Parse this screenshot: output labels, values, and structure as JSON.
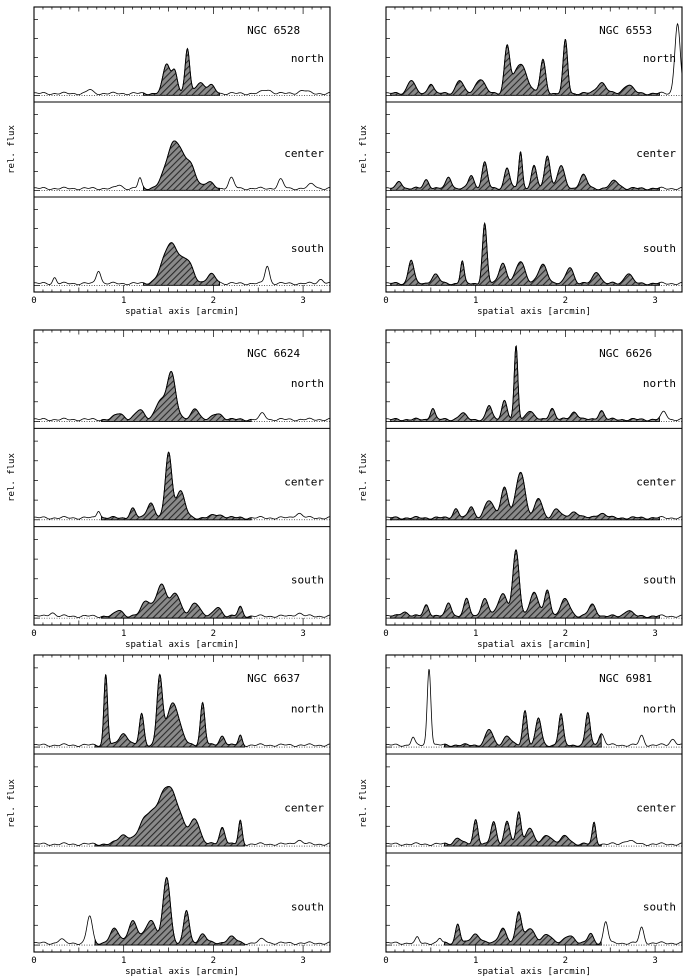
{
  "axis_common": {
    "xlabel": "spatial axis [arcmin]",
    "ylabel": "rel. flux",
    "xticks": [
      0,
      1,
      2,
      3
    ],
    "xlim": [
      0,
      3.3
    ]
  },
  "chart_data": [
    {
      "type": "area",
      "title": "NGC 6528",
      "xlim": [
        0,
        3.3
      ],
      "strips": [
        {
          "label": "north",
          "shade": [
            1.22,
            2.07
          ],
          "peaks": [
            [
              1.48,
              0.4,
              0.04
            ],
            [
              1.57,
              0.3,
              0.03
            ],
            [
              1.71,
              0.6,
              0.025
            ],
            [
              1.85,
              0.15,
              0.05
            ],
            [
              1.98,
              0.1,
              0.04
            ],
            [
              0.62,
              0.05,
              0.03
            ],
            [
              2.6,
              0.05,
              0.05
            ],
            [
              3.0,
              0.04,
              0.05
            ]
          ]
        },
        {
          "label": "center",
          "shade": [
            1.22,
            2.07
          ],
          "peaks": [
            [
              1.57,
              0.65,
              0.09
            ],
            [
              1.75,
              0.25,
              0.06
            ],
            [
              1.95,
              0.08,
              0.05
            ],
            [
              1.18,
              0.14,
              0.02
            ],
            [
              0.95,
              0.05,
              0.03
            ],
            [
              2.2,
              0.14,
              0.03
            ],
            [
              2.75,
              0.12,
              0.03
            ],
            [
              3.1,
              0.06,
              0.04
            ]
          ]
        },
        {
          "label": "south",
          "shade": [
            1.22,
            2.07
          ],
          "peaks": [
            [
              1.53,
              0.55,
              0.09
            ],
            [
              1.72,
              0.25,
              0.06
            ],
            [
              1.98,
              0.12,
              0.05
            ],
            [
              0.72,
              0.18,
              0.025
            ],
            [
              0.23,
              0.08,
              0.02
            ],
            [
              2.6,
              0.24,
              0.025
            ],
            [
              3.2,
              0.06,
              0.03
            ]
          ]
        }
      ]
    },
    {
      "type": "area",
      "title": "NGC 6553",
      "xlim": [
        0,
        3.3
      ],
      "strips": [
        {
          "label": "north",
          "shade": [
            0.05,
            3.05
          ],
          "peaks": [
            [
              0.28,
              0.18,
              0.04
            ],
            [
              0.5,
              0.14,
              0.03
            ],
            [
              0.82,
              0.18,
              0.04
            ],
            [
              1.05,
              0.2,
              0.05
            ],
            [
              1.35,
              0.62,
              0.03
            ],
            [
              1.5,
              0.4,
              0.07
            ],
            [
              1.75,
              0.45,
              0.03
            ],
            [
              2.0,
              0.72,
              0.025
            ],
            [
              2.4,
              0.15,
              0.05
            ],
            [
              2.7,
              0.12,
              0.05
            ],
            [
              3.25,
              0.95,
              0.03
            ]
          ]
        },
        {
          "label": "center",
          "shade": [
            0.05,
            3.05
          ],
          "peaks": [
            [
              0.15,
              0.1,
              0.03
            ],
            [
              0.45,
              0.12,
              0.03
            ],
            [
              0.7,
              0.16,
              0.03
            ],
            [
              0.95,
              0.18,
              0.03
            ],
            [
              1.1,
              0.35,
              0.03
            ],
            [
              1.35,
              0.28,
              0.03
            ],
            [
              1.5,
              0.5,
              0.02
            ],
            [
              1.65,
              0.3,
              0.03
            ],
            [
              1.8,
              0.45,
              0.03
            ],
            [
              1.95,
              0.3,
              0.04
            ],
            [
              2.2,
              0.18,
              0.04
            ],
            [
              2.55,
              0.1,
              0.05
            ]
          ]
        },
        {
          "label": "south",
          "shade": [
            0.05,
            3.05
          ],
          "peaks": [
            [
              0.28,
              0.32,
              0.03
            ],
            [
              0.55,
              0.12,
              0.04
            ],
            [
              0.85,
              0.3,
              0.02
            ],
            [
              1.1,
              0.8,
              0.025
            ],
            [
              1.3,
              0.28,
              0.04
            ],
            [
              1.5,
              0.3,
              0.05
            ],
            [
              1.75,
              0.25,
              0.05
            ],
            [
              2.05,
              0.22,
              0.04
            ],
            [
              2.35,
              0.16,
              0.04
            ],
            [
              2.7,
              0.14,
              0.04
            ]
          ]
        }
      ]
    },
    {
      "type": "area",
      "title": "NGC 6624",
      "xlim": [
        0,
        3.3
      ],
      "strips": [
        {
          "label": "north",
          "shade": [
            0.75,
            2.42
          ],
          "peaks": [
            [
              1.53,
              0.62,
              0.05
            ],
            [
              1.4,
              0.22,
              0.05
            ],
            [
              1.18,
              0.12,
              0.05
            ],
            [
              1.8,
              0.15,
              0.04
            ],
            [
              2.05,
              0.08,
              0.05
            ],
            [
              0.95,
              0.08,
              0.05
            ],
            [
              2.55,
              0.08,
              0.03
            ]
          ]
        },
        {
          "label": "center",
          "shade": [
            0.75,
            2.42
          ],
          "peaks": [
            [
              1.5,
              0.85,
              0.035
            ],
            [
              1.63,
              0.35,
              0.05
            ],
            [
              1.3,
              0.2,
              0.04
            ],
            [
              1.1,
              0.12,
              0.03
            ],
            [
              0.72,
              0.1,
              0.02
            ],
            [
              2.05,
              0.04,
              0.07
            ],
            [
              2.95,
              0.06,
              0.04
            ]
          ]
        },
        {
          "label": "south",
          "shade": [
            0.75,
            2.42
          ],
          "peaks": [
            [
              1.42,
              0.4,
              0.06
            ],
            [
              1.58,
              0.3,
              0.05
            ],
            [
              1.25,
              0.2,
              0.05
            ],
            [
              1.8,
              0.18,
              0.05
            ],
            [
              2.05,
              0.12,
              0.04
            ],
            [
              2.3,
              0.12,
              0.025
            ],
            [
              0.95,
              0.08,
              0.04
            ],
            [
              0.2,
              0.05,
              0.03
            ],
            [
              2.95,
              0.04,
              0.04
            ]
          ]
        }
      ]
    },
    {
      "type": "area",
      "title": "NGC 6626",
      "xlim": [
        0,
        3.3
      ],
      "strips": [
        {
          "label": "north",
          "shade": [
            0.05,
            3.05
          ],
          "peaks": [
            [
              1.45,
              0.95,
              0.02
            ],
            [
              1.32,
              0.25,
              0.03
            ],
            [
              1.15,
              0.18,
              0.03
            ],
            [
              0.52,
              0.15,
              0.025
            ],
            [
              0.85,
              0.08,
              0.04
            ],
            [
              1.6,
              0.12,
              0.04
            ],
            [
              1.85,
              0.15,
              0.03
            ],
            [
              2.1,
              0.1,
              0.04
            ],
            [
              2.4,
              0.12,
              0.03
            ],
            [
              3.1,
              0.1,
              0.03
            ]
          ]
        },
        {
          "label": "center",
          "shade": [
            0.05,
            3.05
          ],
          "peaks": [
            [
              1.5,
              0.6,
              0.05
            ],
            [
              1.32,
              0.4,
              0.04
            ],
            [
              1.15,
              0.22,
              0.05
            ],
            [
              0.78,
              0.12,
              0.03
            ],
            [
              0.95,
              0.15,
              0.03
            ],
            [
              1.7,
              0.25,
              0.04
            ],
            [
              1.9,
              0.12,
              0.04
            ],
            [
              2.1,
              0.08,
              0.05
            ],
            [
              2.4,
              0.06,
              0.05
            ]
          ]
        },
        {
          "label": "south",
          "shade": [
            0.05,
            3.05
          ],
          "peaks": [
            [
              1.45,
              0.85,
              0.035
            ],
            [
              1.3,
              0.3,
              0.05
            ],
            [
              1.1,
              0.22,
              0.04
            ],
            [
              0.9,
              0.22,
              0.03
            ],
            [
              0.7,
              0.18,
              0.03
            ],
            [
              0.45,
              0.15,
              0.03
            ],
            [
              1.65,
              0.3,
              0.05
            ],
            [
              1.8,
              0.35,
              0.03
            ],
            [
              2.0,
              0.22,
              0.05
            ],
            [
              2.3,
              0.15,
              0.04
            ],
            [
              2.7,
              0.08,
              0.04
            ],
            [
              0.2,
              0.06,
              0.04
            ]
          ]
        }
      ]
    },
    {
      "type": "area",
      "title": "NGC 6637",
      "xlim": [
        0,
        3.3
      ],
      "strips": [
        {
          "label": "north",
          "shade": [
            0.68,
            2.35
          ],
          "peaks": [
            [
              0.8,
              0.92,
              0.02
            ],
            [
              1.2,
              0.4,
              0.025
            ],
            [
              1.4,
              0.85,
              0.03
            ],
            [
              1.55,
              0.55,
              0.07
            ],
            [
              1.88,
              0.55,
              0.025
            ],
            [
              1.0,
              0.15,
              0.05
            ],
            [
              2.1,
              0.12,
              0.03
            ],
            [
              2.3,
              0.12,
              0.02
            ]
          ]
        },
        {
          "label": "center",
          "shade": [
            0.68,
            2.35
          ],
          "peaks": [
            [
              1.5,
              0.75,
              0.12
            ],
            [
              1.25,
              0.3,
              0.08
            ],
            [
              1.0,
              0.12,
              0.06
            ],
            [
              1.8,
              0.3,
              0.05
            ],
            [
              2.1,
              0.22,
              0.03
            ],
            [
              2.3,
              0.3,
              0.02
            ],
            [
              2.95,
              0.05,
              0.04
            ]
          ]
        },
        {
          "label": "south",
          "shade": [
            0.68,
            2.35
          ],
          "peaks": [
            [
              1.48,
              0.85,
              0.04
            ],
            [
              1.3,
              0.3,
              0.06
            ],
            [
              1.1,
              0.28,
              0.05
            ],
            [
              0.9,
              0.18,
              0.05
            ],
            [
              0.62,
              0.35,
              0.03
            ],
            [
              1.7,
              0.42,
              0.03
            ],
            [
              1.88,
              0.12,
              0.04
            ],
            [
              2.2,
              0.08,
              0.05
            ],
            [
              0.3,
              0.05,
              0.03
            ],
            [
              2.55,
              0.05,
              0.04
            ]
          ]
        }
      ]
    },
    {
      "type": "area",
      "title": "NGC 6981",
      "xlim": [
        0,
        3.3
      ],
      "strips": [
        {
          "label": "north",
          "shade": [
            0.65,
            2.4
          ],
          "peaks": [
            [
              0.48,
              1.0,
              0.02
            ],
            [
              0.3,
              0.1,
              0.02
            ],
            [
              1.55,
              0.45,
              0.025
            ],
            [
              1.7,
              0.35,
              0.03
            ],
            [
              1.95,
              0.4,
              0.025
            ],
            [
              2.25,
              0.42,
              0.025
            ],
            [
              1.15,
              0.2,
              0.04
            ],
            [
              1.35,
              0.12,
              0.04
            ],
            [
              2.4,
              0.15,
              0.03
            ],
            [
              2.85,
              0.12,
              0.025
            ],
            [
              3.2,
              0.08,
              0.03
            ]
          ]
        },
        {
          "label": "center",
          "shade": [
            0.65,
            2.4
          ],
          "peaks": [
            [
              1.0,
              0.32,
              0.025
            ],
            [
              1.2,
              0.28,
              0.03
            ],
            [
              1.35,
              0.3,
              0.03
            ],
            [
              1.48,
              0.42,
              0.025
            ],
            [
              1.6,
              0.22,
              0.04
            ],
            [
              1.8,
              0.12,
              0.05
            ],
            [
              2.0,
              0.1,
              0.05
            ],
            [
              2.32,
              0.28,
              0.02
            ],
            [
              0.8,
              0.08,
              0.04
            ],
            [
              2.7,
              0.05,
              0.05
            ]
          ]
        },
        {
          "label": "south",
          "shade": [
            0.65,
            2.4
          ],
          "peaks": [
            [
              0.8,
              0.25,
              0.025
            ],
            [
              1.0,
              0.12,
              0.05
            ],
            [
              1.3,
              0.2,
              0.04
            ],
            [
              1.48,
              0.4,
              0.03
            ],
            [
              1.6,
              0.2,
              0.05
            ],
            [
              1.8,
              0.12,
              0.05
            ],
            [
              2.05,
              0.1,
              0.05
            ],
            [
              2.28,
              0.12,
              0.03
            ],
            [
              2.45,
              0.28,
              0.025
            ],
            [
              2.85,
              0.2,
              0.025
            ],
            [
              0.35,
              0.07,
              0.02
            ],
            [
              0.6,
              0.06,
              0.02
            ]
          ]
        }
      ]
    }
  ]
}
